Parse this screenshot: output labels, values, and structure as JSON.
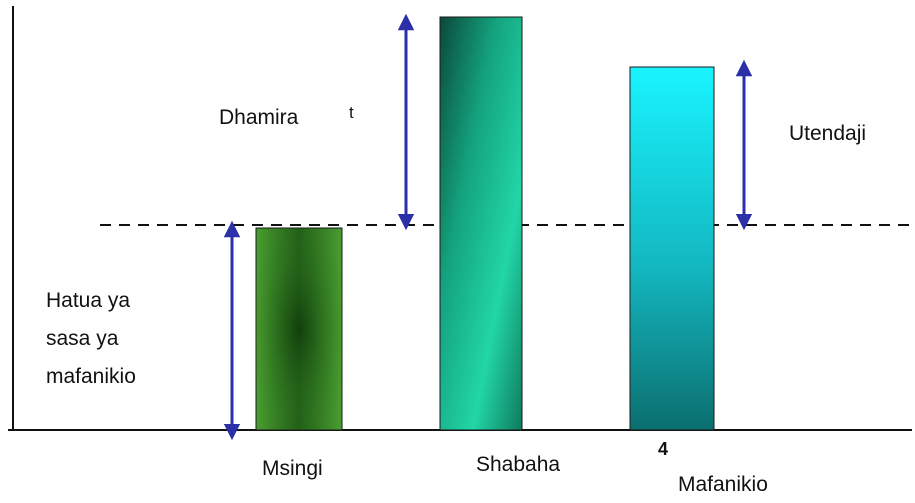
{
  "colors": {
    "arrow": "#2b2fa8",
    "axis": "#111111",
    "baseline": "#111111",
    "bar_msingi": "#3c8f2a",
    "bar_shabaha": "#17b892",
    "bar_mafanikio": "#1ad4d8"
  },
  "bars": [
    {
      "label": "Msingi",
      "level": 0.49,
      "color_key": "bar_msingi"
    },
    {
      "label": "Shabaha",
      "level": 1.0,
      "color_key": "bar_shabaha"
    },
    {
      "label": "Mafanikio",
      "level": 0.88,
      "color_key": "bar_mafanikio"
    }
  ],
  "annotations": {
    "dhamira": "Dhamira",
    "dhamira_stray": "t",
    "utendaji": "Utendaji",
    "hatua_line1": "Hatua ya",
    "hatua_line2": "sasa ya",
    "hatua_line3": "mafanikio"
  },
  "stray_mark": "4"
}
